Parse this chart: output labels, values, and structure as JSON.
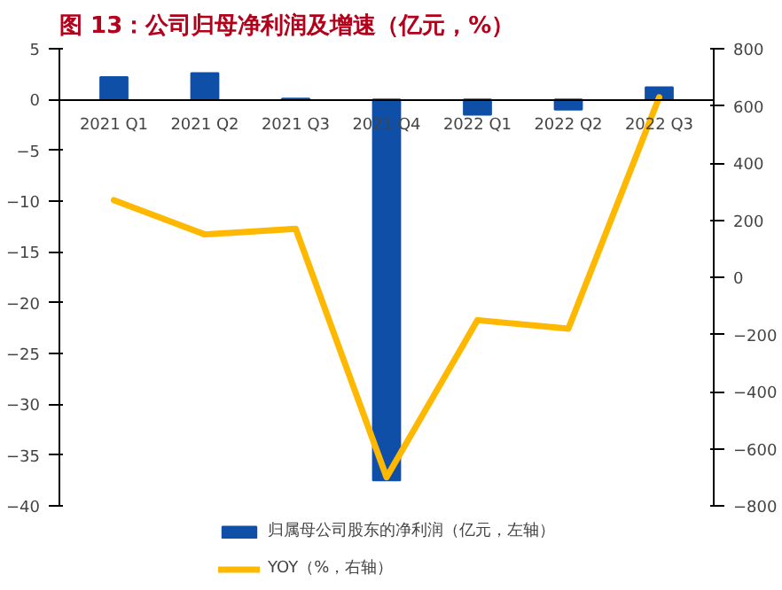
{
  "chart_data": {
    "type": "bar",
    "title": "图 13：公司归母净利润及增速（亿元，%）",
    "categories": [
      "2021 Q1",
      "2021 Q2",
      "2021 Q3",
      "2021 Q4",
      "2022 Q1",
      "2022 Q2",
      "2022 Q3"
    ],
    "series": [
      {
        "name": "归属母公司股东的净利润（亿元，左轴）",
        "color": "#0f4fa8",
        "values": [
          2.2,
          2.6,
          0.1,
          -37.5,
          -1.5,
          -1.0,
          1.2
        ]
      },
      {
        "name": "YOY（%，右轴）",
        "type": "line",
        "axis": "y2",
        "color": "#ffb800",
        "values": [
          270,
          150,
          170,
          -700,
          -150,
          -180,
          630
        ]
      }
    ],
    "ylim": [
      -40,
      5
    ],
    "yticks": [
      -40,
      -35,
      -30,
      -25,
      -20,
      -15,
      -10,
      -5,
      0,
      5
    ],
    "y2lim": [
      -800,
      800
    ],
    "y2ticks": [
      -800,
      -600,
      -400,
      -200,
      0,
      200,
      400,
      600,
      800
    ],
    "grid": false,
    "legend": "bottom"
  }
}
